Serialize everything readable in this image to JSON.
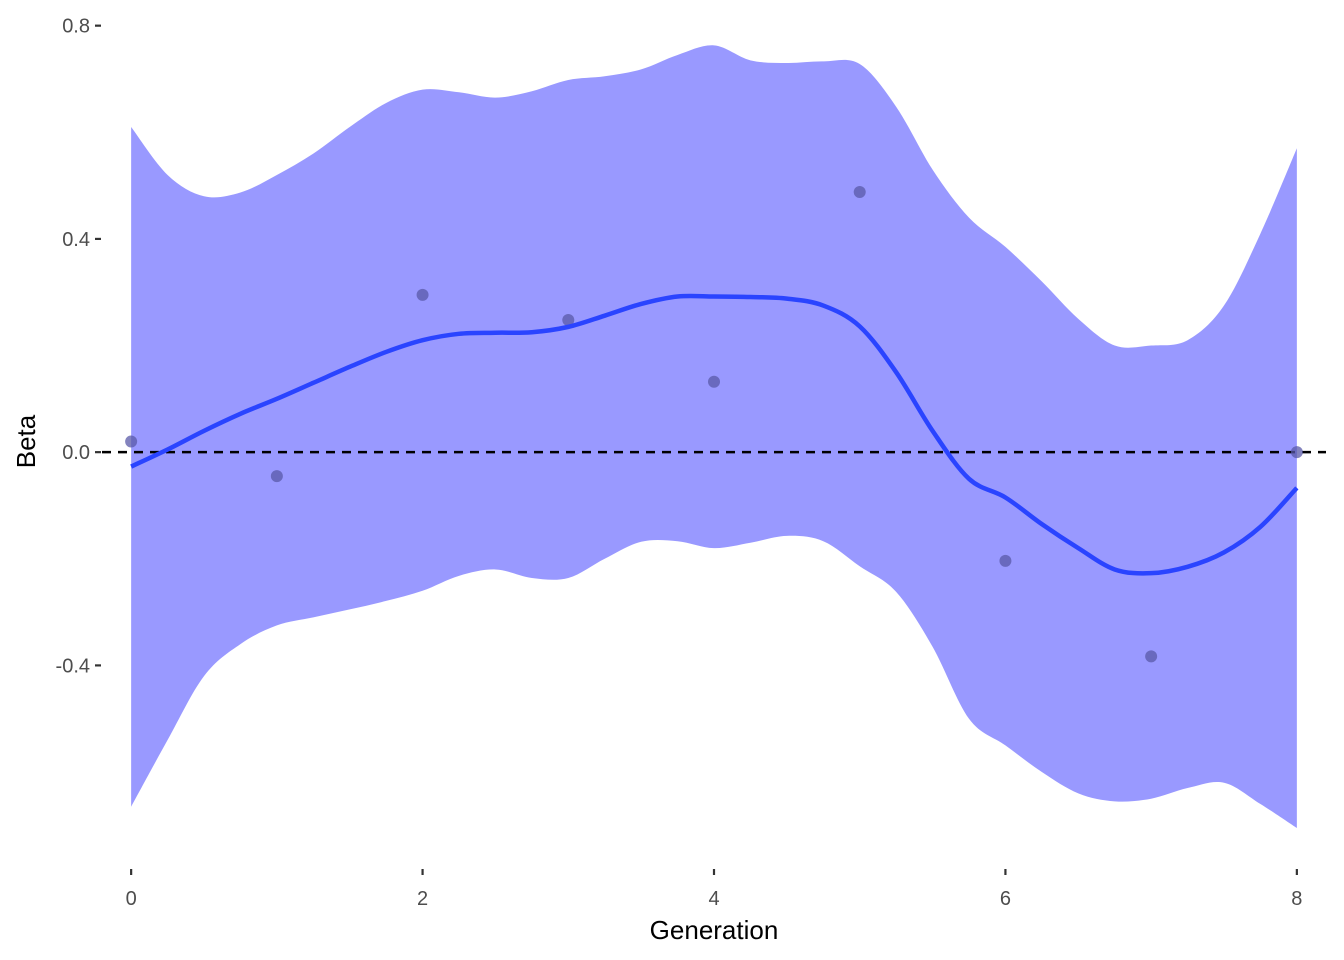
{
  "chart_data": {
    "type": "line",
    "xlabel": "Generation",
    "ylabel": "Beta",
    "xlim": [
      -0.2,
      8.2
    ],
    "ylim": [
      -0.78,
      0.82
    ],
    "x_ticks": [
      0,
      2,
      4,
      6,
      8
    ],
    "x_tick_labels": [
      "0",
      "2",
      "4",
      "6",
      "8"
    ],
    "y_ticks": [
      -0.4,
      0.0,
      0.4,
      0.8
    ],
    "y_tick_labels": [
      "-0.4",
      "0.0",
      "0.4",
      "0.8"
    ],
    "grid": false,
    "reference_line": {
      "y": 0.0,
      "style": "dashed",
      "color": "#000000"
    },
    "points": {
      "color": "#5a5aa8",
      "x": [
        0,
        1,
        2,
        3,
        4,
        5,
        6,
        7,
        8
      ],
      "y": [
        0.02,
        -0.045,
        0.295,
        0.248,
        0.132,
        0.488,
        -0.204,
        -0.383,
        0.0
      ]
    },
    "smooth": {
      "color": "#2a44ff",
      "ribbon_color": "#9999ff",
      "x": [
        0,
        0.25,
        0.5,
        0.75,
        1.0,
        1.25,
        1.5,
        1.75,
        2.0,
        2.25,
        2.5,
        2.75,
        3.0,
        3.25,
        3.5,
        3.75,
        4.0,
        4.25,
        4.5,
        4.75,
        5.0,
        5.25,
        5.5,
        5.75,
        6.0,
        6.25,
        6.5,
        6.75,
        7.0,
        7.25,
        7.5,
        7.75,
        8.0
      ],
      "y": [
        -0.027,
        0.005,
        0.04,
        0.072,
        0.1,
        0.13,
        0.16,
        0.188,
        0.21,
        0.222,
        0.224,
        0.225,
        0.235,
        0.256,
        0.278,
        0.292,
        0.292,
        0.291,
        0.288,
        0.275,
        0.236,
        0.15,
        0.04,
        -0.05,
        -0.085,
        -0.135,
        -0.18,
        -0.22,
        -0.227,
        -0.215,
        -0.188,
        -0.14,
        -0.067
      ],
      "upper": [
        0.61,
        0.52,
        0.48,
        0.487,
        0.52,
        0.56,
        0.61,
        0.655,
        0.68,
        0.675,
        0.665,
        0.677,
        0.698,
        0.705,
        0.718,
        0.745,
        0.763,
        0.735,
        0.73,
        0.733,
        0.728,
        0.648,
        0.53,
        0.44,
        0.385,
        0.32,
        0.25,
        0.2,
        0.2,
        0.21,
        0.275,
        0.41,
        0.57
      ],
      "lower": [
        -0.665,
        -0.54,
        -0.42,
        -0.36,
        -0.325,
        -0.31,
        -0.295,
        -0.279,
        -0.26,
        -0.232,
        -0.22,
        -0.236,
        -0.236,
        -0.2,
        -0.168,
        -0.167,
        -0.18,
        -0.17,
        -0.157,
        -0.167,
        -0.214,
        -0.262,
        -0.365,
        -0.5,
        -0.55,
        -0.6,
        -0.64,
        -0.655,
        -0.65,
        -0.63,
        -0.62,
        -0.66,
        -0.705
      ]
    }
  }
}
